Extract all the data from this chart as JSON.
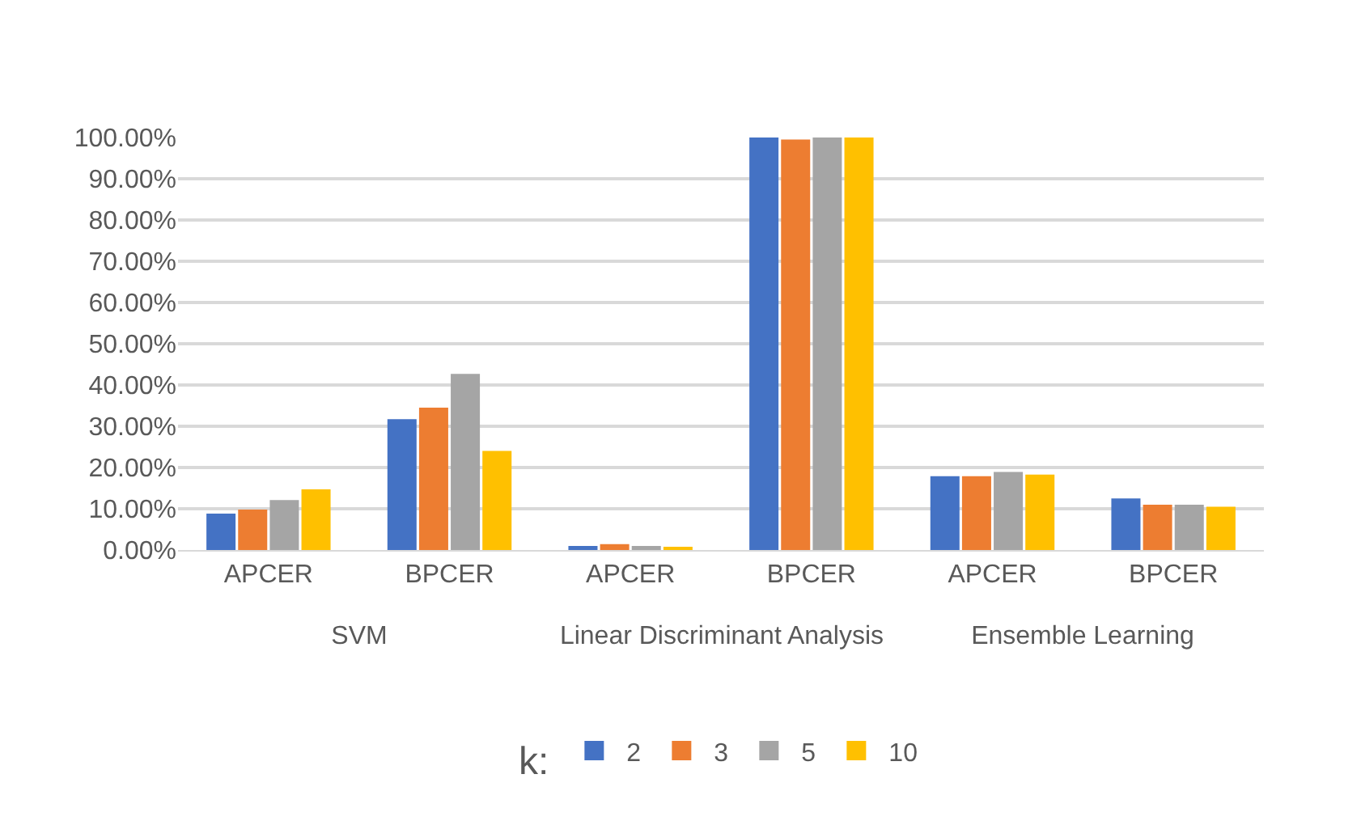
{
  "chart_data": {
    "type": "bar",
    "categories": [
      "APCER",
      "BPCER",
      "APCER",
      "BPCER",
      "APCER",
      "BPCER"
    ],
    "annotations": [
      "SVM",
      "Linear Discriminant Analysis",
      "Ensemble Learning"
    ],
    "legend_title": "k:",
    "series": [
      {
        "name": "2",
        "color": "#4472c4",
        "values": [
          8.8,
          31.7,
          1.0,
          100,
          17.9,
          12.5
        ]
      },
      {
        "name": "3",
        "color": "#ed7d31",
        "values": [
          9.8,
          34.5,
          1.4,
          99.5,
          17.9,
          11.0
        ]
      },
      {
        "name": "5",
        "color": "#a5a5a5",
        "values": [
          12.1,
          42.7,
          1.0,
          100,
          18.9,
          11.0
        ]
      },
      {
        "name": "10",
        "color": "#ffc000",
        "values": [
          14.7,
          24.0,
          0.5,
          100,
          18.3,
          10.5
        ]
      }
    ],
    "ylim": [
      0,
      100
    ],
    "yticks": [
      {
        "value": 0,
        "label": "0.00%"
      },
      {
        "value": 10,
        "label": "10.00%"
      },
      {
        "value": 20,
        "label": "20.00%"
      },
      {
        "value": 30,
        "label": "30.00%"
      },
      {
        "value": 40,
        "label": "40.00%"
      },
      {
        "value": 50,
        "label": "50.00%"
      },
      {
        "value": 60,
        "label": "60.00%"
      },
      {
        "value": 70,
        "label": "70.00%"
      },
      {
        "value": 80,
        "label": "80.00%"
      },
      {
        "value": 90,
        "label": "90.00%"
      },
      {
        "value": 100,
        "label": "100.00%"
      }
    ],
    "grid": "y",
    "legend": "bottom"
  }
}
